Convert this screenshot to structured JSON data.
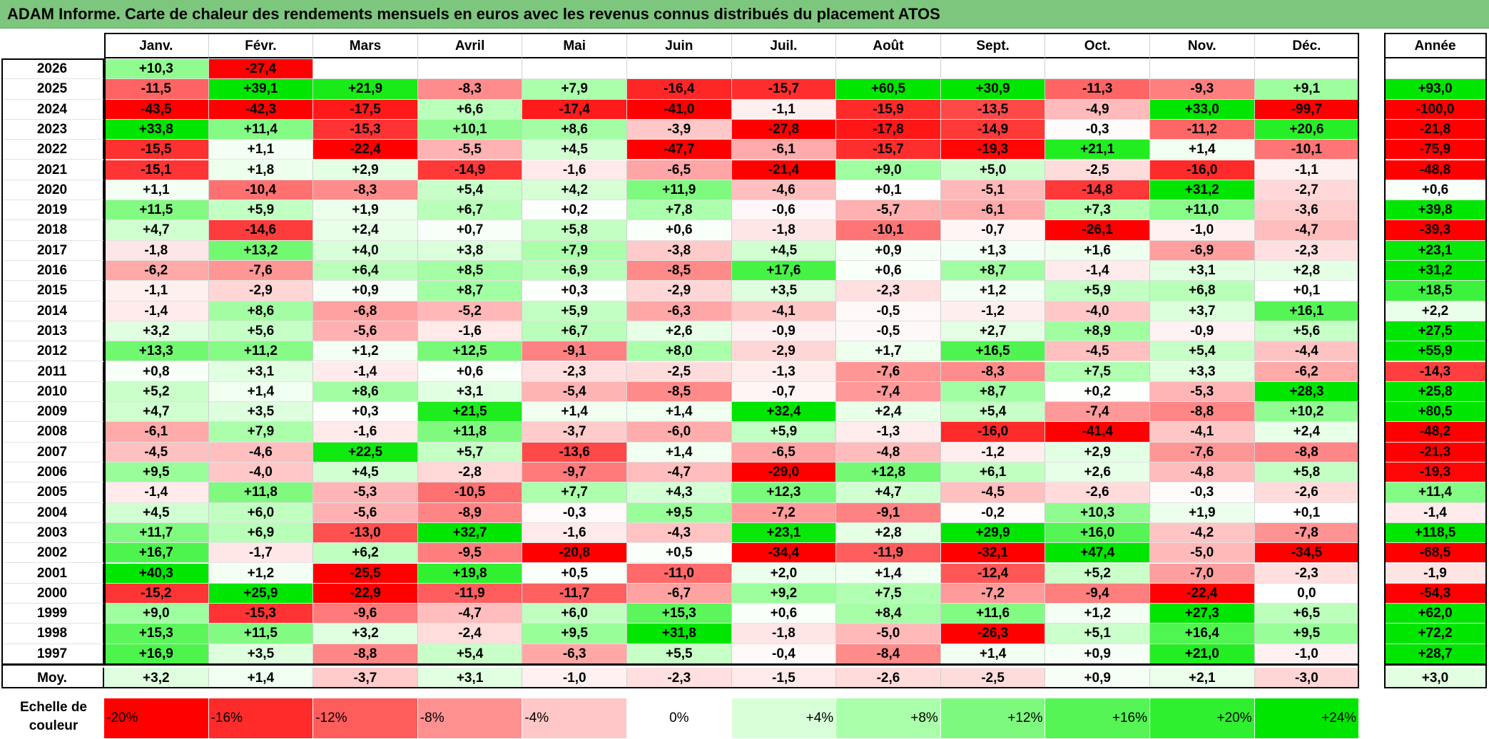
{
  "title": "ADAM Informe. Carte de chaleur des rendements mensuels en euros avec les revenus connus distribués du placement ATOS",
  "chart_data": {
    "type": "heatmap",
    "title": "ADAM Informe. Carte de chaleur des rendements mensuels en euros avec les revenus connus distribués du placement ATOS",
    "months": [
      "Janv.",
      "Févr.",
      "Mars",
      "Avril",
      "Mai",
      "Juin",
      "Juil.",
      "Août",
      "Sept.",
      "Oct.",
      "Nov.",
      "Déc."
    ],
    "year_column_label": "Année",
    "rows": [
      {
        "year": "2026",
        "values": [
          "+10,3",
          "-27,4",
          "",
          "",
          "",
          "",
          "",
          "",
          "",
          "",
          "",
          ""
        ],
        "annual": ""
      },
      {
        "year": "2025",
        "values": [
          "-11,5",
          "+39,1",
          "+21,9",
          "-8,3",
          "+7,9",
          "-16,4",
          "-15,7",
          "+60,5",
          "+30,9",
          "-11,3",
          "-9,3",
          "+9,1"
        ],
        "annual": "+93,0"
      },
      {
        "year": "2024",
        "values": [
          "-43,5",
          "-42,3",
          "-17,5",
          "+6,6",
          "-17,4",
          "-41,0",
          "-1,1",
          "-15,9",
          "-13,5",
          "-4,9",
          "+33,0",
          "-99,7"
        ],
        "annual": "-100,0"
      },
      {
        "year": "2023",
        "values": [
          "+33,8",
          "+11,4",
          "-15,3",
          "+10,1",
          "+8,6",
          "-3,9",
          "-27,8",
          "-17,8",
          "-14,9",
          "-0,3",
          "-11,2",
          "+20,6"
        ],
        "annual": "-21,8"
      },
      {
        "year": "2022",
        "values": [
          "-15,5",
          "+1,1",
          "-22,4",
          "-5,5",
          "+4,5",
          "-47,7",
          "-6,1",
          "-15,7",
          "-19,3",
          "+21,1",
          "+1,4",
          "-10,1"
        ],
        "annual": "-75,9"
      },
      {
        "year": "2021",
        "values": [
          "-15,1",
          "+1,8",
          "+2,9",
          "-14,9",
          "-1,6",
          "-6,5",
          "-21,4",
          "+9,0",
          "+5,0",
          "-2,5",
          "-16,0",
          "-1,1"
        ],
        "annual": "-48,8"
      },
      {
        "year": "2020",
        "values": [
          "+1,1",
          "-10,4",
          "-8,3",
          "+5,4",
          "+4,2",
          "+11,9",
          "-4,6",
          "+0,1",
          "-5,1",
          "-14,8",
          "+31,2",
          "-2,7"
        ],
        "annual": "+0,6"
      },
      {
        "year": "2019",
        "values": [
          "+11,5",
          "+5,9",
          "+1,9",
          "+6,7",
          "+0,2",
          "+7,8",
          "-0,6",
          "-5,7",
          "-6,1",
          "+7,3",
          "+11,0",
          "-3,6"
        ],
        "annual": "+39,8"
      },
      {
        "year": "2018",
        "values": [
          "+4,7",
          "-14,6",
          "+2,4",
          "+0,7",
          "+5,8",
          "+0,6",
          "-1,8",
          "-10,1",
          "-0,7",
          "-26,1",
          "-1,0",
          "-4,7"
        ],
        "annual": "-39,3"
      },
      {
        "year": "2017",
        "values": [
          "-1,8",
          "+13,2",
          "+4,0",
          "+3,8",
          "+7,9",
          "-3,8",
          "+4,5",
          "+0,9",
          "+1,3",
          "+1,6",
          "-6,9",
          "-2,3"
        ],
        "annual": "+23,1"
      },
      {
        "year": "2016",
        "values": [
          "-6,2",
          "-7,6",
          "+6,4",
          "+8,5",
          "+6,9",
          "-8,5",
          "+17,6",
          "+0,6",
          "+8,7",
          "-1,4",
          "+3,1",
          "+2,8"
        ],
        "annual": "+31,2"
      },
      {
        "year": "2015",
        "values": [
          "-1,1",
          "-2,9",
          "+0,9",
          "+8,7",
          "+0,3",
          "-2,9",
          "+3,5",
          "-2,3",
          "+1,2",
          "+5,9",
          "+6,8",
          "+0,1"
        ],
        "annual": "+18,5"
      },
      {
        "year": "2014",
        "values": [
          "-1,4",
          "+8,6",
          "-6,8",
          "-5,2",
          "+5,9",
          "-6,3",
          "-4,1",
          "-0,5",
          "-1,2",
          "-4,0",
          "+3,7",
          "+16,1"
        ],
        "annual": "+2,2"
      },
      {
        "year": "2013",
        "values": [
          "+3,2",
          "+5,6",
          "-5,6",
          "-1,6",
          "+6,7",
          "+2,6",
          "-0,9",
          "-0,5",
          "+2,7",
          "+8,9",
          "-0,9",
          "+5,6"
        ],
        "annual": "+27,5"
      },
      {
        "year": "2012",
        "values": [
          "+13,3",
          "+11,2",
          "+1,2",
          "+12,5",
          "-9,1",
          "+8,0",
          "-2,9",
          "+1,7",
          "+16,5",
          "-4,5",
          "+5,4",
          "-4,4"
        ],
        "annual": "+55,9"
      },
      {
        "year": "2011",
        "values": [
          "+0,8",
          "+3,1",
          "-1,4",
          "+0,6",
          "-2,3",
          "-2,5",
          "-1,3",
          "-7,6",
          "-8,3",
          "+7,5",
          "+3,3",
          "-6,2"
        ],
        "annual": "-14,3"
      },
      {
        "year": "2010",
        "values": [
          "+5,2",
          "+1,4",
          "+8,6",
          "+3,1",
          "-5,4",
          "-8,5",
          "-0,7",
          "-7,4",
          "+8,7",
          "+0,2",
          "-5,3",
          "+28,3"
        ],
        "annual": "+25,8"
      },
      {
        "year": "2009",
        "values": [
          "+4,7",
          "+3,5",
          "+0,3",
          "+21,5",
          "+1,4",
          "+1,4",
          "+32,4",
          "+2,4",
          "+5,4",
          "-7,4",
          "-8,8",
          "+10,2"
        ],
        "annual": "+80,5"
      },
      {
        "year": "2008",
        "values": [
          "-6,1",
          "+7,9",
          "-1,6",
          "+11,8",
          "-3,7",
          "-6,0",
          "+5,9",
          "-1,3",
          "-16,0",
          "-41,4",
          "-4,1",
          "+2,4"
        ],
        "annual": "-48,2"
      },
      {
        "year": "2007",
        "values": [
          "-4,5",
          "-4,6",
          "+22,5",
          "+5,7",
          "-13,6",
          "+1,4",
          "-6,5",
          "-4,8",
          "-1,2",
          "+2,9",
          "-7,6",
          "-8,8"
        ],
        "annual": "-21,3"
      },
      {
        "year": "2006",
        "values": [
          "+9,5",
          "-4,0",
          "+4,5",
          "-2,8",
          "-9,7",
          "-4,7",
          "-29,0",
          "+12,8",
          "+6,1",
          "+2,6",
          "-4,8",
          "+5,8"
        ],
        "annual": "-19,3"
      },
      {
        "year": "2005",
        "values": [
          "-1,4",
          "+11,8",
          "-5,3",
          "-10,5",
          "+7,7",
          "+4,3",
          "+12,3",
          "+4,7",
          "-4,5",
          "-2,6",
          "-0,3",
          "-2,6"
        ],
        "annual": "+11,4"
      },
      {
        "year": "2004",
        "values": [
          "+4,5",
          "+6,0",
          "-5,6",
          "-8,9",
          "-0,3",
          "+9,5",
          "-7,2",
          "-9,1",
          "-0,2",
          "+10,3",
          "+1,9",
          "+0,1"
        ],
        "annual": "-1,4"
      },
      {
        "year": "2003",
        "values": [
          "+11,7",
          "+6,9",
          "-13,0",
          "+32,7",
          "-1,6",
          "-4,3",
          "+23,1",
          "+2,8",
          "+29,9",
          "+16,0",
          "-4,2",
          "-7,8"
        ],
        "annual": "+118,5"
      },
      {
        "year": "2002",
        "values": [
          "+16,7",
          "-1,7",
          "+6,2",
          "-9,5",
          "-20,8",
          "+0,5",
          "-34,4",
          "-11,9",
          "-32,1",
          "+47,4",
          "-5,0",
          "-34,5"
        ],
        "annual": "-68,5"
      },
      {
        "year": "2001",
        "values": [
          "+40,3",
          "+1,2",
          "-25,5",
          "+19,8",
          "+0,5",
          "-11,0",
          "+2,0",
          "+1,4",
          "-12,4",
          "+5,2",
          "-7,0",
          "-2,3"
        ],
        "annual": "-1,9"
      },
      {
        "year": "2000",
        "values": [
          "-15,2",
          "+25,9",
          "-22,9",
          "-11,9",
          "-11,7",
          "-6,7",
          "+9,2",
          "+7,5",
          "-7,2",
          "-9,4",
          "-22,4",
          "0,0"
        ],
        "annual": "-54,3"
      },
      {
        "year": "1999",
        "values": [
          "+9,0",
          "-15,3",
          "-9,6",
          "-4,7",
          "+6,0",
          "+15,3",
          "+0,6",
          "+8,4",
          "+11,6",
          "+1,2",
          "+27,3",
          "+6,5"
        ],
        "annual": "+62,0"
      },
      {
        "year": "1998",
        "values": [
          "+15,3",
          "+11,5",
          "+3,2",
          "-2,4",
          "+9,5",
          "+31,8",
          "-1,8",
          "-5,0",
          "-26,3",
          "+5,1",
          "+16,4",
          "+9,5"
        ],
        "annual": "+72,2"
      },
      {
        "year": "1997",
        "values": [
          "+16,9",
          "+3,5",
          "-8,8",
          "+5,4",
          "-6,3",
          "+5,5",
          "-0,4",
          "-8,4",
          "+1,4",
          "+0,9",
          "+21,0",
          "-1,0"
        ],
        "annual": "+28,7"
      }
    ],
    "average": {
      "label": "Moy.",
      "values": [
        "+3,2",
        "+1,4",
        "-3,7",
        "+3,1",
        "-1,0",
        "-2,3",
        "-1,5",
        "-2,6",
        "-2,5",
        "+0,9",
        "+2,1",
        "-3,0"
      ],
      "annual": "+3,0"
    },
    "scale": {
      "label_line1": "Echelle de",
      "label_line2": "couleur",
      "items": [
        {
          "label": "-20%",
          "value": -20,
          "color": "#ff0000"
        },
        {
          "label": "-16%",
          "value": -16,
          "color": "#ff2a2a"
        },
        {
          "label": "-12%",
          "value": -12,
          "color": "#ff5c5c"
        },
        {
          "label": "-8%",
          "value": -8,
          "color": "#ff9090"
        },
        {
          "label": "-4%",
          "value": -4,
          "color": "#ffc7c7"
        },
        {
          "label": "0%",
          "value": 0,
          "color": "#ffffff"
        },
        {
          "label": "+4%",
          "value": 4,
          "color": "#d8ffd8"
        },
        {
          "label": "+8%",
          "value": 8,
          "color": "#aaffaa"
        },
        {
          "label": "+12%",
          "value": 12,
          "color": "#7dfa7d"
        },
        {
          "label": "+16%",
          "value": 16,
          "color": "#55f555"
        },
        {
          "label": "+20%",
          "value": 20,
          "color": "#2ef02e"
        },
        {
          "label": "+24%",
          "value": 24,
          "color": "#00e600"
        }
      ]
    }
  }
}
